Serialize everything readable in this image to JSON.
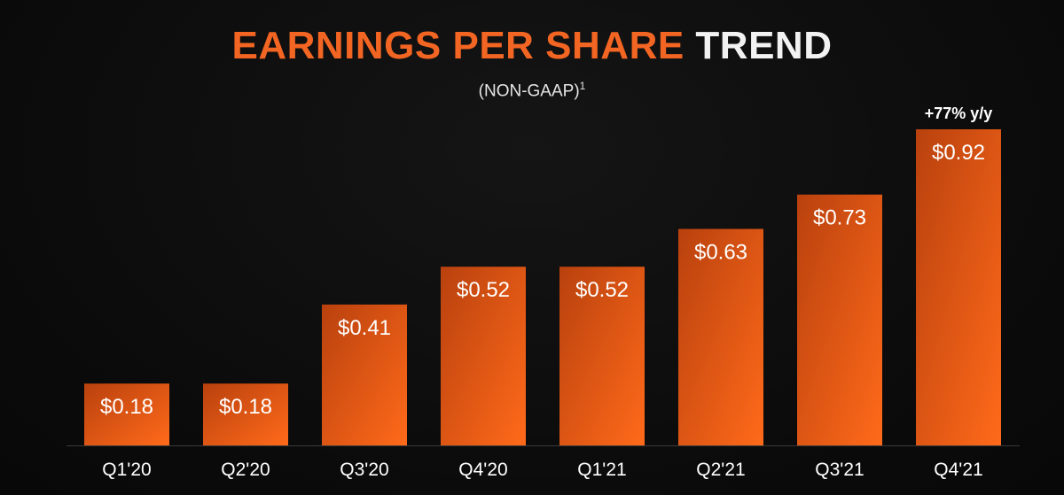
{
  "title": {
    "part1": "EARNINGS PER SHARE ",
    "part2": "TREND"
  },
  "subtitle": {
    "text": "(NON-GAAP)",
    "footnote": "1"
  },
  "colors": {
    "bar_light": "#ff6a1a",
    "bar_dark": "#b9410e",
    "title_accent": "#f26522",
    "baseline": "#3a3a3a"
  },
  "chart_data": {
    "type": "bar",
    "title": "EARNINGS PER SHARE TREND",
    "subtitle": "(NON-GAAP)1",
    "categories": [
      "Q1'20",
      "Q2'20",
      "Q3'20",
      "Q4'20",
      "Q1'21",
      "Q2'21",
      "Q3'21",
      "Q4'21"
    ],
    "values": [
      0.18,
      0.18,
      0.41,
      0.52,
      0.52,
      0.63,
      0.73,
      0.92
    ],
    "data_labels": [
      "$0.18",
      "$0.18",
      "$0.41",
      "$0.52",
      "$0.52",
      "$0.63",
      "$0.73",
      "$0.92"
    ],
    "annotations": [
      {
        "category": "Q4'21",
        "text": "+77% y/y"
      }
    ],
    "xlabel": "",
    "ylabel": "",
    "ylim": [
      0,
      1.0
    ],
    "grid": false,
    "legend": "none"
  }
}
